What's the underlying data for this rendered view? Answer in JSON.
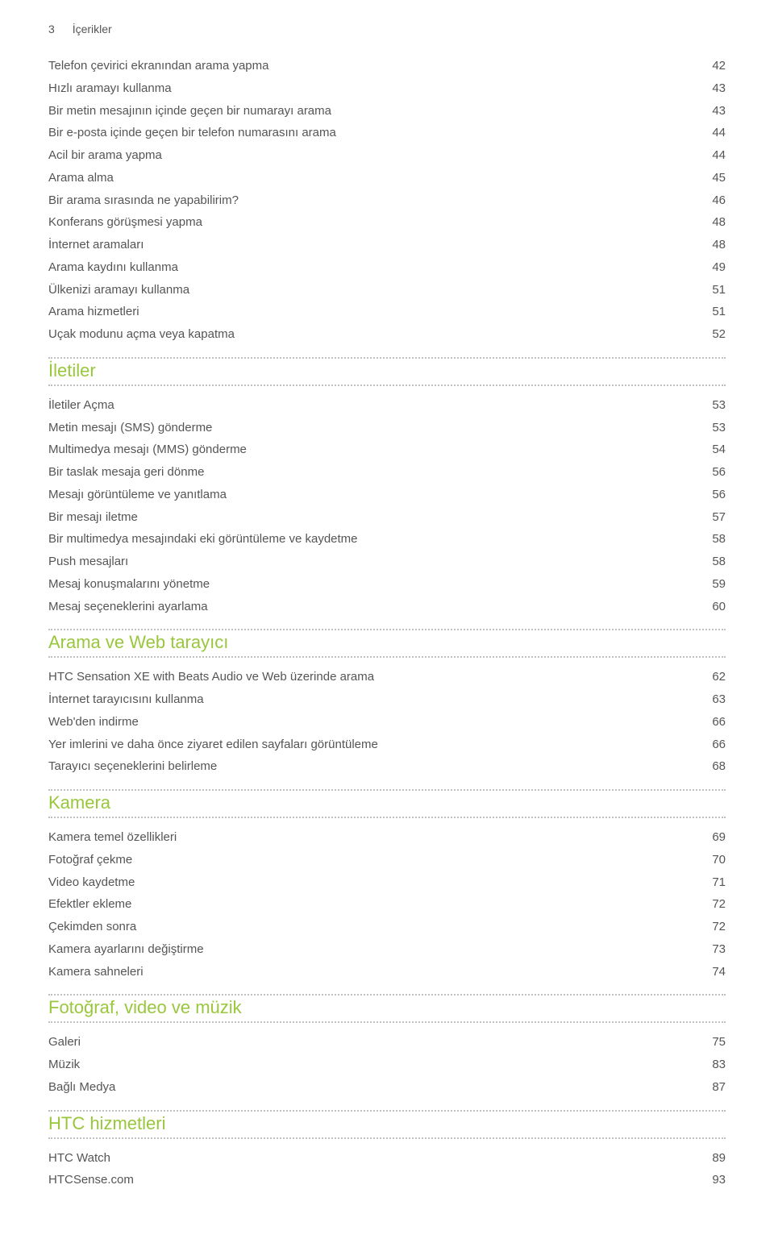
{
  "header": {
    "page_number": "3",
    "title": "İçerikler"
  },
  "colors": {
    "heading": "#99c73c",
    "text": "#555555",
    "dotted": "#c0c0c0",
    "bg": "#ffffff"
  },
  "sections": [
    {
      "heading": null,
      "items": [
        {
          "label": "Telefon çevirici ekranından arama yapma",
          "page": "42"
        },
        {
          "label": "Hızlı aramayı kullanma",
          "page": "43"
        },
        {
          "label": "Bir metin mesajının içinde geçen bir numarayı arama",
          "page": "43"
        },
        {
          "label": "Bir e-posta içinde geçen bir telefon numarasını arama",
          "page": "44"
        },
        {
          "label": "Acil bir arama yapma",
          "page": "44"
        },
        {
          "label": "Arama alma",
          "page": "45"
        },
        {
          "label": "Bir arama sırasında ne yapabilirim?",
          "page": "46"
        },
        {
          "label": "Konferans görüşmesi yapma",
          "page": "48"
        },
        {
          "label": "İnternet aramaları",
          "page": "48"
        },
        {
          "label": "Arama kaydını kullanma",
          "page": "49"
        },
        {
          "label": "Ülkenizi aramayı kullanma",
          "page": "51"
        },
        {
          "label": "Arama hizmetleri",
          "page": "51"
        },
        {
          "label": "Uçak modunu açma veya kapatma",
          "page": "52"
        }
      ]
    },
    {
      "heading": "İletiler",
      "items": [
        {
          "label": "İletiler Açma",
          "page": "53"
        },
        {
          "label": "Metin mesajı (SMS) gönderme",
          "page": "53"
        },
        {
          "label": "Multimedya mesajı (MMS) gönderme",
          "page": "54"
        },
        {
          "label": "Bir taslak mesaja geri dönme",
          "page": "56"
        },
        {
          "label": "Mesajı görüntüleme ve yanıtlama",
          "page": "56"
        },
        {
          "label": "Bir mesajı iletme",
          "page": "57"
        },
        {
          "label": "Bir multimedya mesajındaki eki görüntüleme ve kaydetme",
          "page": "58"
        },
        {
          "label": "Push mesajları",
          "page": "58"
        },
        {
          "label": "Mesaj konuşmalarını yönetme",
          "page": "59"
        },
        {
          "label": "Mesaj seçeneklerini ayarlama",
          "page": "60"
        }
      ]
    },
    {
      "heading": "Arama ve Web tarayıcı",
      "items": [
        {
          "label": "HTC Sensation XE with Beats Audio ve Web üzerinde arama",
          "page": "62"
        },
        {
          "label": "İnternet tarayıcısını kullanma",
          "page": "63"
        },
        {
          "label": "Web'den indirme",
          "page": "66"
        },
        {
          "label": "Yer imlerini ve daha önce ziyaret edilen sayfaları görüntüleme",
          "page": "66"
        },
        {
          "label": "Tarayıcı seçeneklerini belirleme",
          "page": "68"
        }
      ]
    },
    {
      "heading": "Kamera",
      "items": [
        {
          "label": "Kamera temel özellikleri",
          "page": "69"
        },
        {
          "label": "Fotoğraf çekme",
          "page": "70"
        },
        {
          "label": "Video kaydetme",
          "page": "71"
        },
        {
          "label": "Efektler ekleme",
          "page": "72"
        },
        {
          "label": "Çekimden sonra",
          "page": "72"
        },
        {
          "label": "Kamera ayarlarını değiştirme",
          "page": "73"
        },
        {
          "label": "Kamera sahneleri",
          "page": "74"
        }
      ]
    },
    {
      "heading": "Fotoğraf, video ve müzik",
      "items": [
        {
          "label": "Galeri",
          "page": "75"
        },
        {
          "label": "Müzik",
          "page": "83"
        },
        {
          "label": "Bağlı Medya",
          "page": "87"
        }
      ]
    },
    {
      "heading": "HTC hizmetleri",
      "items": [
        {
          "label": "HTC Watch",
          "page": "89"
        },
        {
          "label": "HTCSense.com",
          "page": "93"
        }
      ]
    }
  ]
}
